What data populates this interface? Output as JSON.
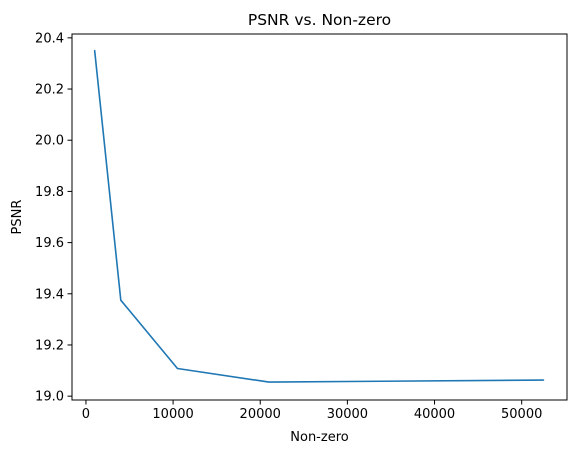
{
  "chart_data": {
    "type": "line",
    "title": "PSNR vs. Non-zero",
    "xlabel": "Non-zero",
    "ylabel": "PSNR",
    "xlim": [
      -1600,
      55200
    ],
    "ylim": [
      18.985,
      20.415
    ],
    "xticks": [
      0,
      10000,
      20000,
      30000,
      40000,
      50000
    ],
    "xtick_labels": [
      "0",
      "10000",
      "20000",
      "30000",
      "40000",
      "50000"
    ],
    "yticks": [
      19.0,
      19.2,
      19.4,
      19.6,
      19.8,
      20.0,
      20.2,
      20.4
    ],
    "ytick_labels": [
      "19.0",
      "19.2",
      "19.4",
      "19.6",
      "19.8",
      "20.0",
      "20.2",
      "20.4"
    ],
    "grid": false,
    "series": [
      {
        "name": "PSNR",
        "color": "#1f77b4",
        "x": [
          1000,
          4000,
          10500,
          21000,
          52500
        ],
        "y": [
          20.35,
          19.375,
          19.108,
          19.055,
          19.063
        ]
      }
    ]
  }
}
